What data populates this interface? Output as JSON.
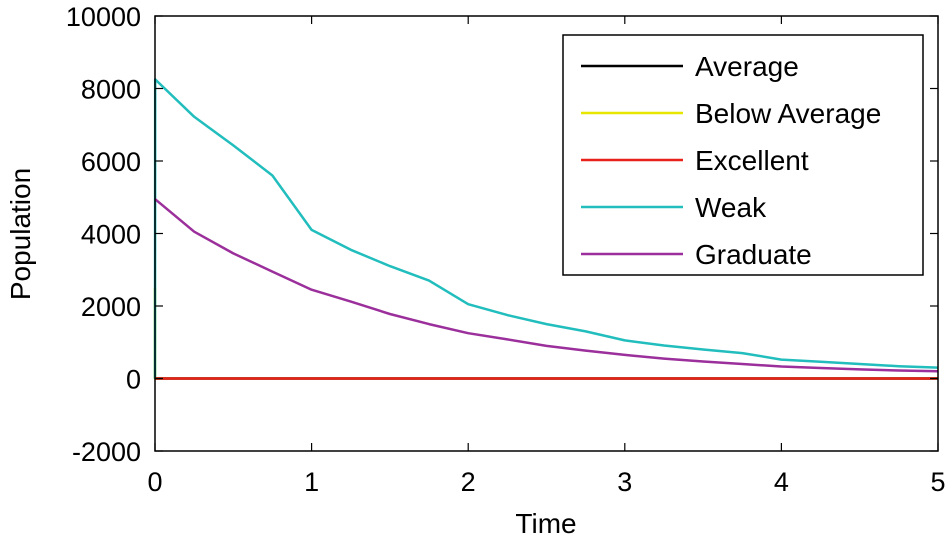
{
  "chart_data": {
    "type": "line",
    "title": "",
    "xlabel": "Time",
    "ylabel": "Population",
    "xlim": [
      0,
      5
    ],
    "ylim": [
      -2000,
      10000
    ],
    "xticks": [
      0,
      1,
      2,
      3,
      4,
      5
    ],
    "yticks": [
      -2000,
      0,
      2000,
      4000,
      6000,
      8000,
      10000
    ],
    "grid": false,
    "legend_position": "top-right",
    "series": [
      {
        "name": "Average",
        "color": "#000000",
        "x": [
          0,
          5
        ],
        "y": [
          0,
          0
        ]
      },
      {
        "name": "Below Average",
        "color": "#e6e600",
        "x": [
          0,
          0.0001,
          5
        ],
        "y": [
          2500,
          0,
          0
        ]
      },
      {
        "name": "Excellent",
        "color": "#e8211a",
        "x": [
          0,
          5
        ],
        "y": [
          0,
          0
        ]
      },
      {
        "name": "Weak",
        "color": "#22bdbd",
        "x": [
          0,
          0.001,
          0.25,
          0.5,
          0.75,
          1,
          1.25,
          1.5,
          1.75,
          2,
          2.25,
          2.5,
          2.75,
          3,
          3.25,
          3.5,
          3.75,
          4,
          4.25,
          4.5,
          4.75,
          5
        ],
        "y": [
          0,
          8250,
          7220,
          6430,
          5600,
          4100,
          3550,
          3100,
          2700,
          2050,
          1750,
          1500,
          1300,
          1050,
          910,
          800,
          700,
          520,
          460,
          400,
          340,
          300
        ]
      },
      {
        "name": "Graduate",
        "color": "#9b2f9b",
        "x": [
          0,
          0.25,
          0.5,
          0.75,
          1,
          1.25,
          1.5,
          1.75,
          2,
          2.25,
          2.5,
          2.75,
          3,
          3.25,
          3.5,
          3.75,
          4,
          4.25,
          4.5,
          4.75,
          5
        ],
        "y": [
          4950,
          4050,
          3450,
          2950,
          2450,
          2120,
          1780,
          1500,
          1250,
          1080,
          900,
          770,
          650,
          550,
          470,
          400,
          330,
          290,
          250,
          220,
          200
        ]
      }
    ]
  }
}
